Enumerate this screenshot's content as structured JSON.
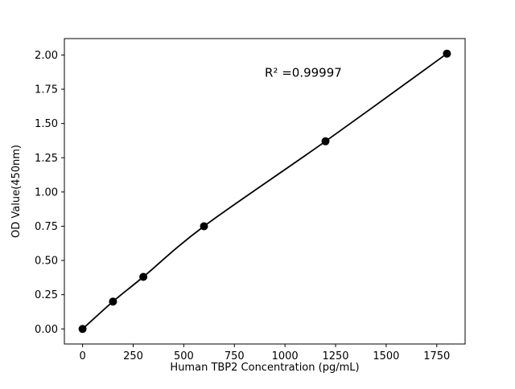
{
  "chart_data": {
    "type": "scatter",
    "title": "",
    "xlabel": "Human TBP2 Concentration (pg/mL)",
    "ylabel": "OD Value(450nm)",
    "x": [
      0,
      150,
      300,
      600,
      1200,
      1800
    ],
    "y": [
      0.0,
      0.2,
      0.38,
      0.75,
      1.37,
      2.01
    ],
    "annotation": {
      "text": "R² =0.99997",
      "x": 900,
      "y": 1.84
    },
    "xlim": [
      -90,
      1890
    ],
    "ylim": [
      -0.11,
      2.12
    ],
    "xticks": [
      0,
      250,
      500,
      750,
      1000,
      1250,
      1500,
      1750
    ],
    "yticks": [
      0.0,
      0.25,
      0.5,
      0.75,
      1.0,
      1.25,
      1.5,
      1.75,
      2.0
    ],
    "ytick_decimals": 2,
    "grid": false,
    "legend_position": "none",
    "line_color": "#000000",
    "marker_color": "#000000",
    "background_color": "#ffffff",
    "marker_radius": 5,
    "line_width": 1.8
  }
}
